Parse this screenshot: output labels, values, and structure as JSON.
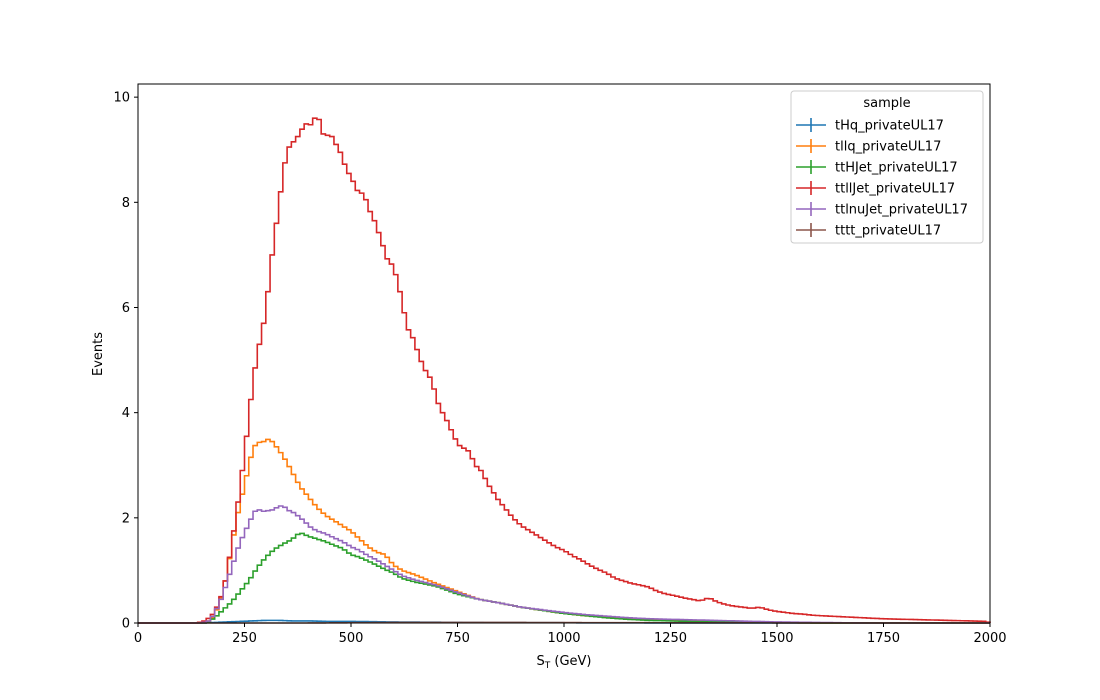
{
  "chart_data": {
    "type": "line",
    "style": "step histogram",
    "xlabel": "S",
    "xlabel_subscript": "T",
    "xlabel_unit": " (GeV)",
    "ylabel": "Events",
    "xlim": [
      0,
      2000
    ],
    "ylim": [
      0,
      10.25
    ],
    "xticks": [
      0,
      250,
      500,
      750,
      1000,
      1250,
      1500,
      1750,
      2000
    ],
    "yticks": [
      0,
      2,
      4,
      6,
      8,
      10
    ],
    "xticklabels": [
      "0",
      "250",
      "500",
      "750",
      "1000",
      "1250",
      "1500",
      "1750",
      "2000"
    ],
    "yticklabels": [
      "0",
      "2",
      "4",
      "6",
      "8",
      "10"
    ],
    "grid": false,
    "legend": {
      "title": "sample",
      "position": "top-right"
    },
    "bin_width": 10,
    "series": [
      {
        "name": "tHq_privateUL17",
        "color": "#1f77b4",
        "points": [
          [
            0,
            0
          ],
          [
            150,
            0
          ],
          [
            180,
            0.01
          ],
          [
            210,
            0.02
          ],
          [
            240,
            0.03
          ],
          [
            270,
            0.04
          ],
          [
            300,
            0.05
          ],
          [
            330,
            0.05
          ],
          [
            360,
            0.04
          ],
          [
            400,
            0.04
          ],
          [
            450,
            0.03
          ],
          [
            500,
            0.03
          ],
          [
            600,
            0.02
          ],
          [
            700,
            0.015
          ],
          [
            800,
            0.01
          ],
          [
            1000,
            0.005
          ],
          [
            1200,
            0.002
          ],
          [
            1500,
            0.0
          ],
          [
            2000,
            0
          ]
        ]
      },
      {
        "name": "tllq_privateUL17",
        "color": "#ff7f0e",
        "points": [
          [
            0,
            0
          ],
          [
            150,
            0
          ],
          [
            170,
            0.05
          ],
          [
            180,
            0.15
          ],
          [
            190,
            0.35
          ],
          [
            200,
            0.6
          ],
          [
            210,
            1.0
          ],
          [
            220,
            1.45
          ],
          [
            230,
            1.9
          ],
          [
            240,
            2.3
          ],
          [
            250,
            2.6
          ],
          [
            260,
            3.0
          ],
          [
            270,
            3.3
          ],
          [
            280,
            3.45
          ],
          [
            290,
            3.42
          ],
          [
            300,
            3.48
          ],
          [
            310,
            3.5
          ],
          [
            320,
            3.4
          ],
          [
            330,
            3.3
          ],
          [
            340,
            3.18
          ],
          [
            350,
            3.05
          ],
          [
            360,
            2.9
          ],
          [
            370,
            2.75
          ],
          [
            380,
            2.6
          ],
          [
            390,
            2.5
          ],
          [
            400,
            2.4
          ],
          [
            420,
            2.2
          ],
          [
            440,
            2.05
          ],
          [
            460,
            1.95
          ],
          [
            480,
            1.85
          ],
          [
            500,
            1.75
          ],
          [
            520,
            1.6
          ],
          [
            540,
            1.45
          ],
          [
            560,
            1.35
          ],
          [
            580,
            1.3
          ],
          [
            600,
            1.1
          ],
          [
            620,
            1.0
          ],
          [
            650,
            0.92
          ],
          [
            700,
            0.75
          ],
          [
            750,
            0.6
          ],
          [
            800,
            0.45
          ],
          [
            850,
            0.38
          ],
          [
            900,
            0.3
          ],
          [
            950,
            0.24
          ],
          [
            1000,
            0.18
          ],
          [
            1050,
            0.14
          ],
          [
            1100,
            0.11
          ],
          [
            1150,
            0.08
          ],
          [
            1200,
            0.06
          ],
          [
            1300,
            0.04
          ],
          [
            1400,
            0.02
          ],
          [
            1500,
            0.01
          ],
          [
            1600,
            0.0
          ],
          [
            2000,
            0
          ]
        ]
      },
      {
        "name": "ttHJet_privateUL17",
        "color": "#2ca02c",
        "points": [
          [
            0,
            0
          ],
          [
            160,
            0
          ],
          [
            180,
            0.1
          ],
          [
            200,
            0.25
          ],
          [
            220,
            0.4
          ],
          [
            240,
            0.6
          ],
          [
            260,
            0.8
          ],
          [
            280,
            1.05
          ],
          [
            300,
            1.25
          ],
          [
            320,
            1.4
          ],
          [
            340,
            1.5
          ],
          [
            360,
            1.58
          ],
          [
            380,
            1.72
          ],
          [
            400,
            1.65
          ],
          [
            420,
            1.6
          ],
          [
            440,
            1.55
          ],
          [
            460,
            1.48
          ],
          [
            480,
            1.42
          ],
          [
            500,
            1.3
          ],
          [
            520,
            1.25
          ],
          [
            540,
            1.18
          ],
          [
            560,
            1.1
          ],
          [
            580,
            1.02
          ],
          [
            600,
            0.95
          ],
          [
            620,
            0.85
          ],
          [
            650,
            0.78
          ],
          [
            700,
            0.7
          ],
          [
            750,
            0.55
          ],
          [
            800,
            0.45
          ],
          [
            850,
            0.38
          ],
          [
            900,
            0.3
          ],
          [
            950,
            0.24
          ],
          [
            1000,
            0.18
          ],
          [
            1050,
            0.14
          ],
          [
            1100,
            0.1
          ],
          [
            1150,
            0.07
          ],
          [
            1200,
            0.05
          ],
          [
            1300,
            0.03
          ],
          [
            1400,
            0.02
          ],
          [
            1500,
            0.01
          ],
          [
            1600,
            0.0
          ],
          [
            2000,
            0
          ]
        ]
      },
      {
        "name": "ttllJet_privateUL17",
        "color": "#d62728",
        "points": [
          [
            0,
            0
          ],
          [
            140,
            0
          ],
          [
            160,
            0.05
          ],
          [
            180,
            0.2
          ],
          [
            200,
            0.6
          ],
          [
            210,
            1.0
          ],
          [
            220,
            1.5
          ],
          [
            230,
            2.0
          ],
          [
            240,
            2.6
          ],
          [
            250,
            3.2
          ],
          [
            260,
            3.9
          ],
          [
            270,
            4.6
          ],
          [
            280,
            5.1
          ],
          [
            290,
            5.5
          ],
          [
            300,
            5.9
          ],
          [
            310,
            6.7
          ],
          [
            320,
            7.3
          ],
          [
            330,
            7.9
          ],
          [
            340,
            8.5
          ],
          [
            350,
            9.0
          ],
          [
            360,
            9.1
          ],
          [
            370,
            9.2
          ],
          [
            380,
            9.3
          ],
          [
            390,
            9.48
          ],
          [
            400,
            9.5
          ],
          [
            410,
            9.45
          ],
          [
            420,
            9.75
          ],
          [
            430,
            9.4
          ],
          [
            440,
            9.2
          ],
          [
            450,
            9.35
          ],
          [
            460,
            9.15
          ],
          [
            470,
            9.05
          ],
          [
            480,
            8.85
          ],
          [
            490,
            8.6
          ],
          [
            500,
            8.5
          ],
          [
            510,
            8.3
          ],
          [
            520,
            8.15
          ],
          [
            530,
            8.2
          ],
          [
            540,
            7.9
          ],
          [
            550,
            7.75
          ],
          [
            560,
            7.55
          ],
          [
            570,
            7.3
          ],
          [
            580,
            7.05
          ],
          [
            590,
            6.8
          ],
          [
            600,
            6.85
          ],
          [
            610,
            6.4
          ],
          [
            620,
            6.2
          ],
          [
            630,
            5.6
          ],
          [
            640,
            5.55
          ],
          [
            650,
            5.3
          ],
          [
            660,
            5.1
          ],
          [
            670,
            4.85
          ],
          [
            680,
            4.75
          ],
          [
            690,
            4.6
          ],
          [
            700,
            4.3
          ],
          [
            710,
            4.05
          ],
          [
            720,
            3.95
          ],
          [
            730,
            3.75
          ],
          [
            740,
            3.6
          ],
          [
            750,
            3.4
          ],
          [
            760,
            3.35
          ],
          [
            770,
            3.3
          ],
          [
            780,
            3.25
          ],
          [
            790,
            3.0
          ],
          [
            800,
            2.95
          ],
          [
            810,
            2.85
          ],
          [
            820,
            2.65
          ],
          [
            830,
            2.55
          ],
          [
            840,
            2.4
          ],
          [
            850,
            2.3
          ],
          [
            860,
            2.2
          ],
          [
            870,
            2.1
          ],
          [
            880,
            2.0
          ],
          [
            900,
            1.85
          ],
          [
            920,
            1.75
          ],
          [
            940,
            1.65
          ],
          [
            960,
            1.55
          ],
          [
            980,
            1.45
          ],
          [
            1000,
            1.38
          ],
          [
            1020,
            1.28
          ],
          [
            1040,
            1.2
          ],
          [
            1060,
            1.1
          ],
          [
            1080,
            1.02
          ],
          [
            1100,
            0.95
          ],
          [
            1120,
            0.85
          ],
          [
            1140,
            0.8
          ],
          [
            1160,
            0.75
          ],
          [
            1180,
            0.72
          ],
          [
            1200,
            0.68
          ],
          [
            1220,
            0.6
          ],
          [
            1240,
            0.55
          ],
          [
            1260,
            0.52
          ],
          [
            1280,
            0.48
          ],
          [
            1300,
            0.45
          ],
          [
            1320,
            0.42
          ],
          [
            1340,
            0.48
          ],
          [
            1360,
            0.4
          ],
          [
            1380,
            0.35
          ],
          [
            1400,
            0.32
          ],
          [
            1420,
            0.3
          ],
          [
            1440,
            0.28
          ],
          [
            1460,
            0.3
          ],
          [
            1480,
            0.25
          ],
          [
            1500,
            0.22
          ],
          [
            1520,
            0.2
          ],
          [
            1540,
            0.18
          ],
          [
            1560,
            0.17
          ],
          [
            1580,
            0.15
          ],
          [
            1600,
            0.14
          ],
          [
            1650,
            0.12
          ],
          [
            1700,
            0.1
          ],
          [
            1750,
            0.08
          ],
          [
            1800,
            0.07
          ],
          [
            1850,
            0.06
          ],
          [
            1900,
            0.05
          ],
          [
            1950,
            0.04
          ],
          [
            1990,
            0.03
          ],
          [
            2000,
            0
          ]
        ]
      },
      {
        "name": "ttlnuJet_privateUL17",
        "color": "#9467bd",
        "points": [
          [
            0,
            0
          ],
          [
            150,
            0
          ],
          [
            170,
            0.05
          ],
          [
            180,
            0.2
          ],
          [
            190,
            0.35
          ],
          [
            200,
            0.55
          ],
          [
            210,
            0.8
          ],
          [
            220,
            1.05
          ],
          [
            230,
            1.3
          ],
          [
            240,
            1.55
          ],
          [
            250,
            1.7
          ],
          [
            260,
            1.9
          ],
          [
            270,
            2.05
          ],
          [
            280,
            2.2
          ],
          [
            290,
            2.1
          ],
          [
            300,
            2.15
          ],
          [
            310,
            2.12
          ],
          [
            320,
            2.18
          ],
          [
            330,
            2.2
          ],
          [
            340,
            2.25
          ],
          [
            350,
            2.15
          ],
          [
            360,
            2.12
          ],
          [
            370,
            2.08
          ],
          [
            380,
            2.0
          ],
          [
            390,
            1.95
          ],
          [
            400,
            1.85
          ],
          [
            420,
            1.75
          ],
          [
            440,
            1.7
          ],
          [
            460,
            1.62
          ],
          [
            480,
            1.55
          ],
          [
            500,
            1.45
          ],
          [
            520,
            1.38
          ],
          [
            540,
            1.28
          ],
          [
            560,
            1.2
          ],
          [
            580,
            1.1
          ],
          [
            600,
            1.0
          ],
          [
            620,
            0.9
          ],
          [
            650,
            0.82
          ],
          [
            700,
            0.72
          ],
          [
            750,
            0.58
          ],
          [
            800,
            0.45
          ],
          [
            850,
            0.38
          ],
          [
            900,
            0.3
          ],
          [
            950,
            0.25
          ],
          [
            1000,
            0.2
          ],
          [
            1050,
            0.16
          ],
          [
            1100,
            0.13
          ],
          [
            1150,
            0.1
          ],
          [
            1200,
            0.08
          ],
          [
            1300,
            0.06
          ],
          [
            1400,
            0.04
          ],
          [
            1500,
            0.02
          ],
          [
            1600,
            0.01
          ],
          [
            1700,
            0.0
          ],
          [
            2000,
            0
          ]
        ]
      },
      {
        "name": "tttt_privateUL17",
        "color": "#8c564b",
        "points": [
          [
            0,
            0
          ],
          [
            400,
            0
          ],
          [
            500,
            0.005
          ],
          [
            600,
            0.01
          ],
          [
            700,
            0.012
          ],
          [
            800,
            0.012
          ],
          [
            900,
            0.01
          ],
          [
            1000,
            0.008
          ],
          [
            1200,
            0.005
          ],
          [
            1500,
            0.002
          ],
          [
            2000,
            0
          ]
        ]
      }
    ]
  }
}
